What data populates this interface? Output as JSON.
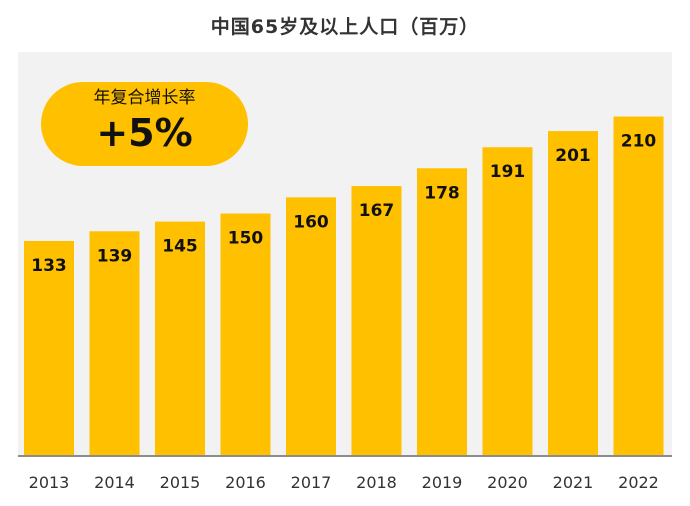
{
  "chart_data": {
    "type": "bar",
    "title": "中国65岁及以上人口（百万）",
    "categories": [
      "2013",
      "2014",
      "2015",
      "2016",
      "2017",
      "2018",
      "2019",
      "2020",
      "2021",
      "2022"
    ],
    "values": [
      133,
      139,
      145,
      150,
      160,
      167,
      178,
      191,
      201,
      210
    ],
    "xlabel": "",
    "ylabel": "",
    "ylim": [
      0,
      230
    ],
    "grid": false,
    "annotation": {
      "label": "年复合增长率",
      "value": "+5%"
    }
  },
  "colors": {
    "bar": "#ffc000",
    "plot_background": "#f2f2f2",
    "axis": "#8c8c8c",
    "label_text": "#111111",
    "tick_text": "#333333"
  }
}
